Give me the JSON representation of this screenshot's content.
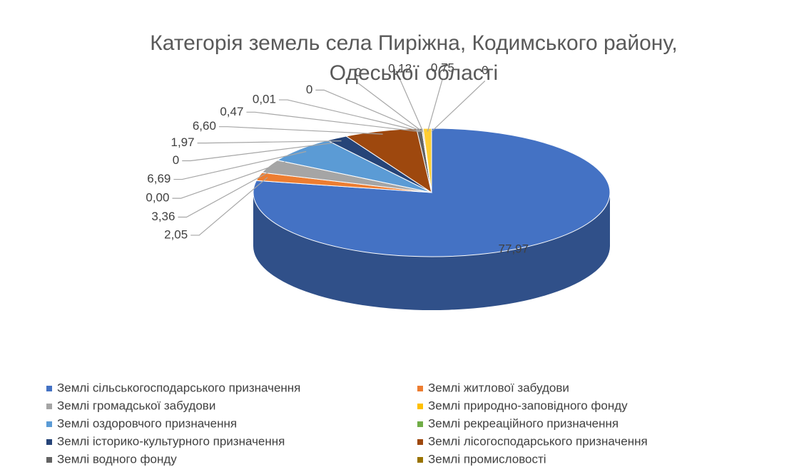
{
  "chart_data": {
    "type": "pie3d",
    "title": "Категорія земель села Пиріжна, Кодимського району, Одеської області",
    "categories": [
      "Землі сільськогосподарського призначення",
      "Землі житлової забудови",
      "Землі громадської забудови",
      "Землі природно-заповідного фонду",
      "Землі оздоровчого призначення",
      "Землі рекреаційного призначення",
      "Землі історико-культурного призначення",
      "Землі лісогосподарського призначення",
      "Землі водного фонду",
      "Землі промисловості",
      null,
      null,
      null,
      null,
      null
    ],
    "values": [
      77.97,
      2.05,
      3.36,
      0.0,
      6.69,
      0,
      1.97,
      6.6,
      0.47,
      0.01,
      0,
      0,
      0.12,
      0.75,
      0
    ],
    "value_labels": [
      "77,97",
      "2,05",
      "3,36",
      "0,00",
      "6,69",
      "0",
      "1,97",
      "6,60",
      "0,47",
      "0,01",
      "0",
      "0",
      "0,12",
      "0,75",
      "0"
    ],
    "colors": [
      "#4472c4",
      "#ed7d31",
      "#a5a5a5",
      "#ffc000",
      "#5b9bd5",
      "#70ad47",
      "#264478",
      "#9e480e",
      "#636363",
      "#997300",
      "#698ed0",
      "#f1975a",
      "#b7b7b7",
      "#ffcd33",
      "#7cafdd"
    ],
    "legend": "bottom"
  }
}
